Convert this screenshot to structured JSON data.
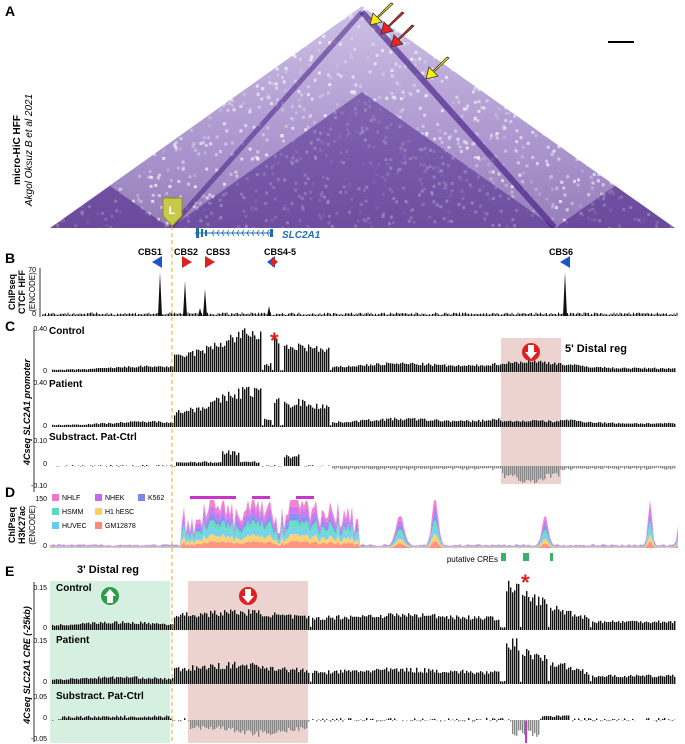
{
  "panels": {
    "a": {
      "letter": "A",
      "side_label_1": "micro-HiC HFF",
      "side_label_2": "Akgol Oksuz B et al 2021"
    },
    "b": {
      "letter": "B",
      "side_label_1": "ChIPseq",
      "side_label_2": "CTCF HFF",
      "side_label_3": "(ENCODE)",
      "ytick": "70",
      "ytick0": "0"
    },
    "c": {
      "letter": "C",
      "side_label": "4Cseq SLC2A1 promoter",
      "tracks": [
        {
          "name": "Control",
          "ymax": "0.40",
          "ymin": "0"
        },
        {
          "name": "Patient",
          "ymax": "0.40",
          "ymin": "0"
        },
        {
          "name": "Substract. Pat-Ctrl",
          "ymax": "0.10",
          "ymid": "0",
          "ymin": "-0.10"
        }
      ],
      "region_label": "5' Distal reg"
    },
    "d": {
      "letter": "D",
      "side_label_1": "ChIPseq",
      "side_label_2": "H3K27ac",
      "side_label_3": "(ENCODE)",
      "ytick": "150",
      "ytick0": "0",
      "legend": [
        {
          "name": "NHLF",
          "color": "#ee77cc"
        },
        {
          "name": "NHEK",
          "color": "#cc66ee"
        },
        {
          "name": "K562",
          "color": "#7788ee"
        },
        {
          "name": "HSMM",
          "color": "#55ddbb"
        },
        {
          "name": "H1 hESC",
          "color": "#ffcc66"
        },
        {
          "name": "HUVEC",
          "color": "#66ccee"
        },
        {
          "name": "GM12878",
          "color": "#ff8877"
        }
      ],
      "cre_label": "putative CREs"
    },
    "e": {
      "letter": "E",
      "side_label": "4Cseq SLC2A1 CRE (-25kb)",
      "region_label": "3' Distal reg",
      "tracks": [
        {
          "name": "Control",
          "ymax": "0.15",
          "ymin": "0"
        },
        {
          "name": "Patient",
          "ymax": "0.15",
          "ymin": "0"
        },
        {
          "name": "Substract. Pat-Ctrl",
          "ymax": "0.05",
          "ymid": "0",
          "ymin": "-0.05"
        }
      ]
    }
  },
  "gene": {
    "name": "SLC2A1"
  },
  "ctcf_sites": [
    {
      "name": "CBS1",
      "orientation": "reverse"
    },
    {
      "name": "CBS2",
      "orientation": "forward"
    },
    {
      "name": "CBS3",
      "orientation": "forward"
    },
    {
      "name": "CBS4-5",
      "orientation": "both"
    },
    {
      "name": "CBS6",
      "orientation": "reverse"
    }
  ],
  "marker_letter": "L",
  "colors": {
    "hic": "#4b1f8c",
    "reverse": "#2255cc",
    "forward": "#dd2222",
    "region_red": "#ecd3d0",
    "region_green": "#d5f0e0",
    "gene": "#1f6fb0",
    "star": "#e02020",
    "dash": "#e0b020",
    "arrow_yellow": "#ffee00"
  }
}
